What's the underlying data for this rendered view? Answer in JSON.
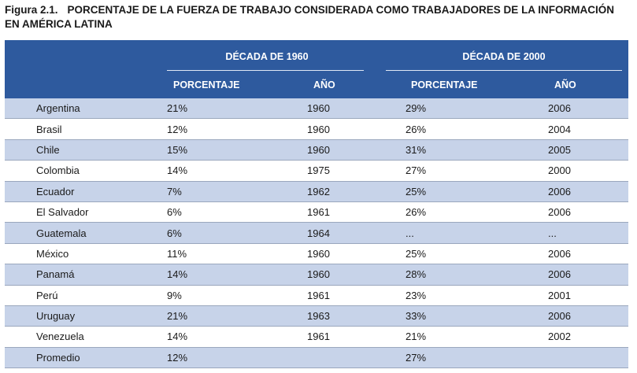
{
  "caption": {
    "figure": "Figura 2.1.",
    "title_line1": "PORCENTAJE DE LA FUERZA DE TRABAJO CONSIDERADA COMO TRABAJADORES DE LA INFORMACIÓN",
    "title_line2": "EN AMÉRICA LATINA"
  },
  "header": {
    "decade1": "DÉCADA DE 1960",
    "decade2": "DÉCADA DE 2000",
    "col_pct1": "PORCENTAJE",
    "col_year1": "AÑO",
    "col_pct2": "PORCENTAJE",
    "col_year2": "AÑO"
  },
  "rows": [
    {
      "country": "Argentina",
      "pct1960": "21%",
      "year1960": "1960",
      "pct2000": "29%",
      "year2000": "2006"
    },
    {
      "country": "Brasil",
      "pct1960": "12%",
      "year1960": "1960",
      "pct2000": "26%",
      "year2000": "2004"
    },
    {
      "country": "Chile",
      "pct1960": "15%",
      "year1960": "1960",
      "pct2000": "31%",
      "year2000": "2005"
    },
    {
      "country": "Colombia",
      "pct1960": "14%",
      "year1960": "1975",
      "pct2000": "27%",
      "year2000": "2000"
    },
    {
      "country": "Ecuador",
      "pct1960": "7%",
      "year1960": "1962",
      "pct2000": "25%",
      "year2000": "2006"
    },
    {
      "country": "El Salvador",
      "pct1960": "6%",
      "year1960": "1961",
      "pct2000": "26%",
      "year2000": "2006"
    },
    {
      "country": "Guatemala",
      "pct1960": "6%",
      "year1960": "1964",
      "pct2000": "...",
      "year2000": "..."
    },
    {
      "country": "México",
      "pct1960": "11%",
      "year1960": "1960",
      "pct2000": "25%",
      "year2000": "2006"
    },
    {
      "country": "Panamá",
      "pct1960": "14%",
      "year1960": "1960",
      "pct2000": "28%",
      "year2000": "2006"
    },
    {
      "country": "Perú",
      "pct1960": "9%",
      "year1960": "1961",
      "pct2000": "23%",
      "year2000": "2001"
    },
    {
      "country": "Uruguay",
      "pct1960": "21%",
      "year1960": "1963",
      "pct2000": "33%",
      "year2000": "2006"
    },
    {
      "country": "Venezuela",
      "pct1960": "14%",
      "year1960": "1961",
      "pct2000": "21%",
      "year2000": "2002"
    },
    {
      "country": "Promedio",
      "pct1960": "12%",
      "year1960": "",
      "pct2000": "27%",
      "year2000": ""
    }
  ]
}
